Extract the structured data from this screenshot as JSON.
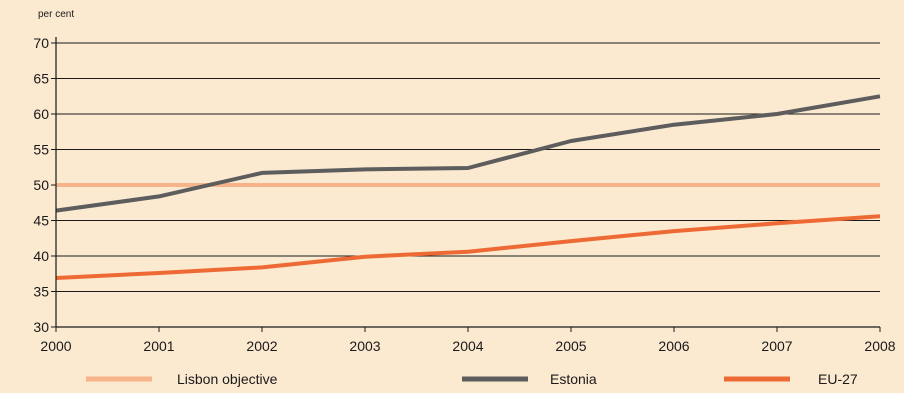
{
  "chart_data": {
    "type": "line",
    "ylabel": "per cent",
    "x": [
      "2000",
      "2001",
      "2002",
      "2003",
      "2004",
      "2005",
      "2006",
      "2007",
      "2008"
    ],
    "ylim": [
      30,
      70
    ],
    "yticks": [
      30,
      35,
      40,
      45,
      50,
      55,
      60,
      65,
      70
    ],
    "grid": true,
    "legend": "bottom",
    "series": [
      {
        "name": "Lisbon objective",
        "color": "#f7b48a",
        "values": [
          50,
          50,
          50,
          50,
          50,
          50,
          50,
          50,
          50
        ]
      },
      {
        "name": "Estonia",
        "color": "#5d5d5d",
        "values": [
          46.4,
          48.4,
          51.7,
          52.2,
          52.4,
          56.2,
          58.5,
          60.0,
          62.5
        ]
      },
      {
        "name": "EU-27",
        "color": "#ee6a34",
        "values": [
          36.9,
          37.6,
          38.4,
          39.9,
          40.6,
          42.1,
          43.5,
          44.6,
          45.6
        ]
      }
    ]
  }
}
